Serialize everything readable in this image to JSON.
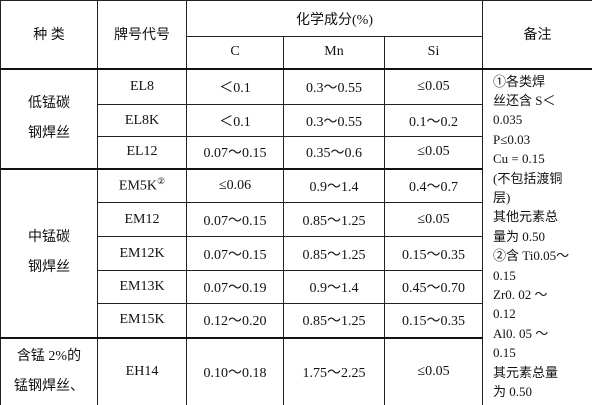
{
  "header": {
    "category": "种 类",
    "grade": "牌号代号",
    "composition": "化学成分(%)",
    "elements": [
      "C",
      "Mn",
      "Si"
    ],
    "remark": "备注"
  },
  "groups": [
    {
      "name_lines": [
        "低锰碳",
        "钢焊丝"
      ],
      "rows": [
        {
          "grade": "EL8",
          "c": "＜0.1",
          "mn": "0.3～0.55",
          "si": "≤0.05"
        },
        {
          "grade": "EL8K",
          "c": "＜0.1",
          "mn": "0.3～0.55",
          "si": "0.1～0.2"
        },
        {
          "grade": "EL12",
          "c": "0.07～0.15",
          "mn": "0.35～0.6",
          "si": "≤0.05"
        }
      ]
    },
    {
      "name_lines": [
        "中锰碳",
        "钢焊丝"
      ],
      "rows": [
        {
          "grade": "EM5K",
          "sup": "②",
          "c": "≤0.06",
          "mn": "0.9～1.4",
          "si": "0.4～0.7"
        },
        {
          "grade": "EM12",
          "c": "0.07～0.15",
          "mn": "0.85～1.25",
          "si": "≤0.05"
        },
        {
          "grade": "EM12K",
          "c": "0.07～0.15",
          "mn": "0.85～1.25",
          "si": "0.15～0.35"
        },
        {
          "grade": "EM13K",
          "c": "0.07～0.19",
          "mn": "0.9～1.4",
          "si": "0.45～0.70"
        },
        {
          "grade": "EM15K",
          "c": "0.12～0.20",
          "mn": "0.85～1.25",
          "si": "0.15～0.35"
        }
      ]
    },
    {
      "name_lines": [
        "含锰 2%的",
        "锰钢焊丝、"
      ],
      "rows": [
        {
          "grade": "EH14",
          "c": "0.10～0.18",
          "mn": "1.75～2.25",
          "si": "≤0.05"
        }
      ]
    }
  ],
  "remark_lines": [
    "①各类焊",
    "丝还含 S＜",
    "0.035",
    "P≤0.03",
    "Cu = 0.15",
    "(不包括渡铜",
    "层)",
    "其他元素总",
    "量为 0.50",
    "②含 Ti0.05～",
    "0.15",
    "Zr0. 02 ～",
    "0.12",
    "Al0. 05 ～",
    "0.15",
    "其元素总量",
    "为 0.50"
  ]
}
